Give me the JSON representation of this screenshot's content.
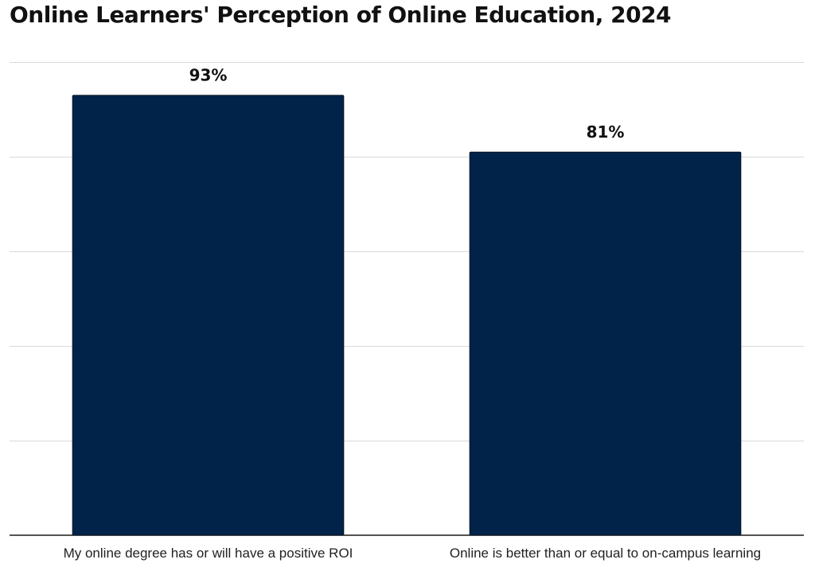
{
  "chart_data": {
    "type": "bar",
    "title": "Online Learners' Perception of Online Education, 2024",
    "categories": [
      "My online degree has or will have a positive ROI",
      "Online is better than or equal to on-campus learning"
    ],
    "values": [
      93,
      81
    ],
    "value_labels": [
      "93%",
      "81%"
    ],
    "xlabel": "",
    "ylabel": "",
    "ylim": [
      0,
      100
    ],
    "ygrid_step": 20,
    "grid": true,
    "y_tick_labels_shown": false,
    "legend": "none",
    "bar_color": "#012249"
  }
}
